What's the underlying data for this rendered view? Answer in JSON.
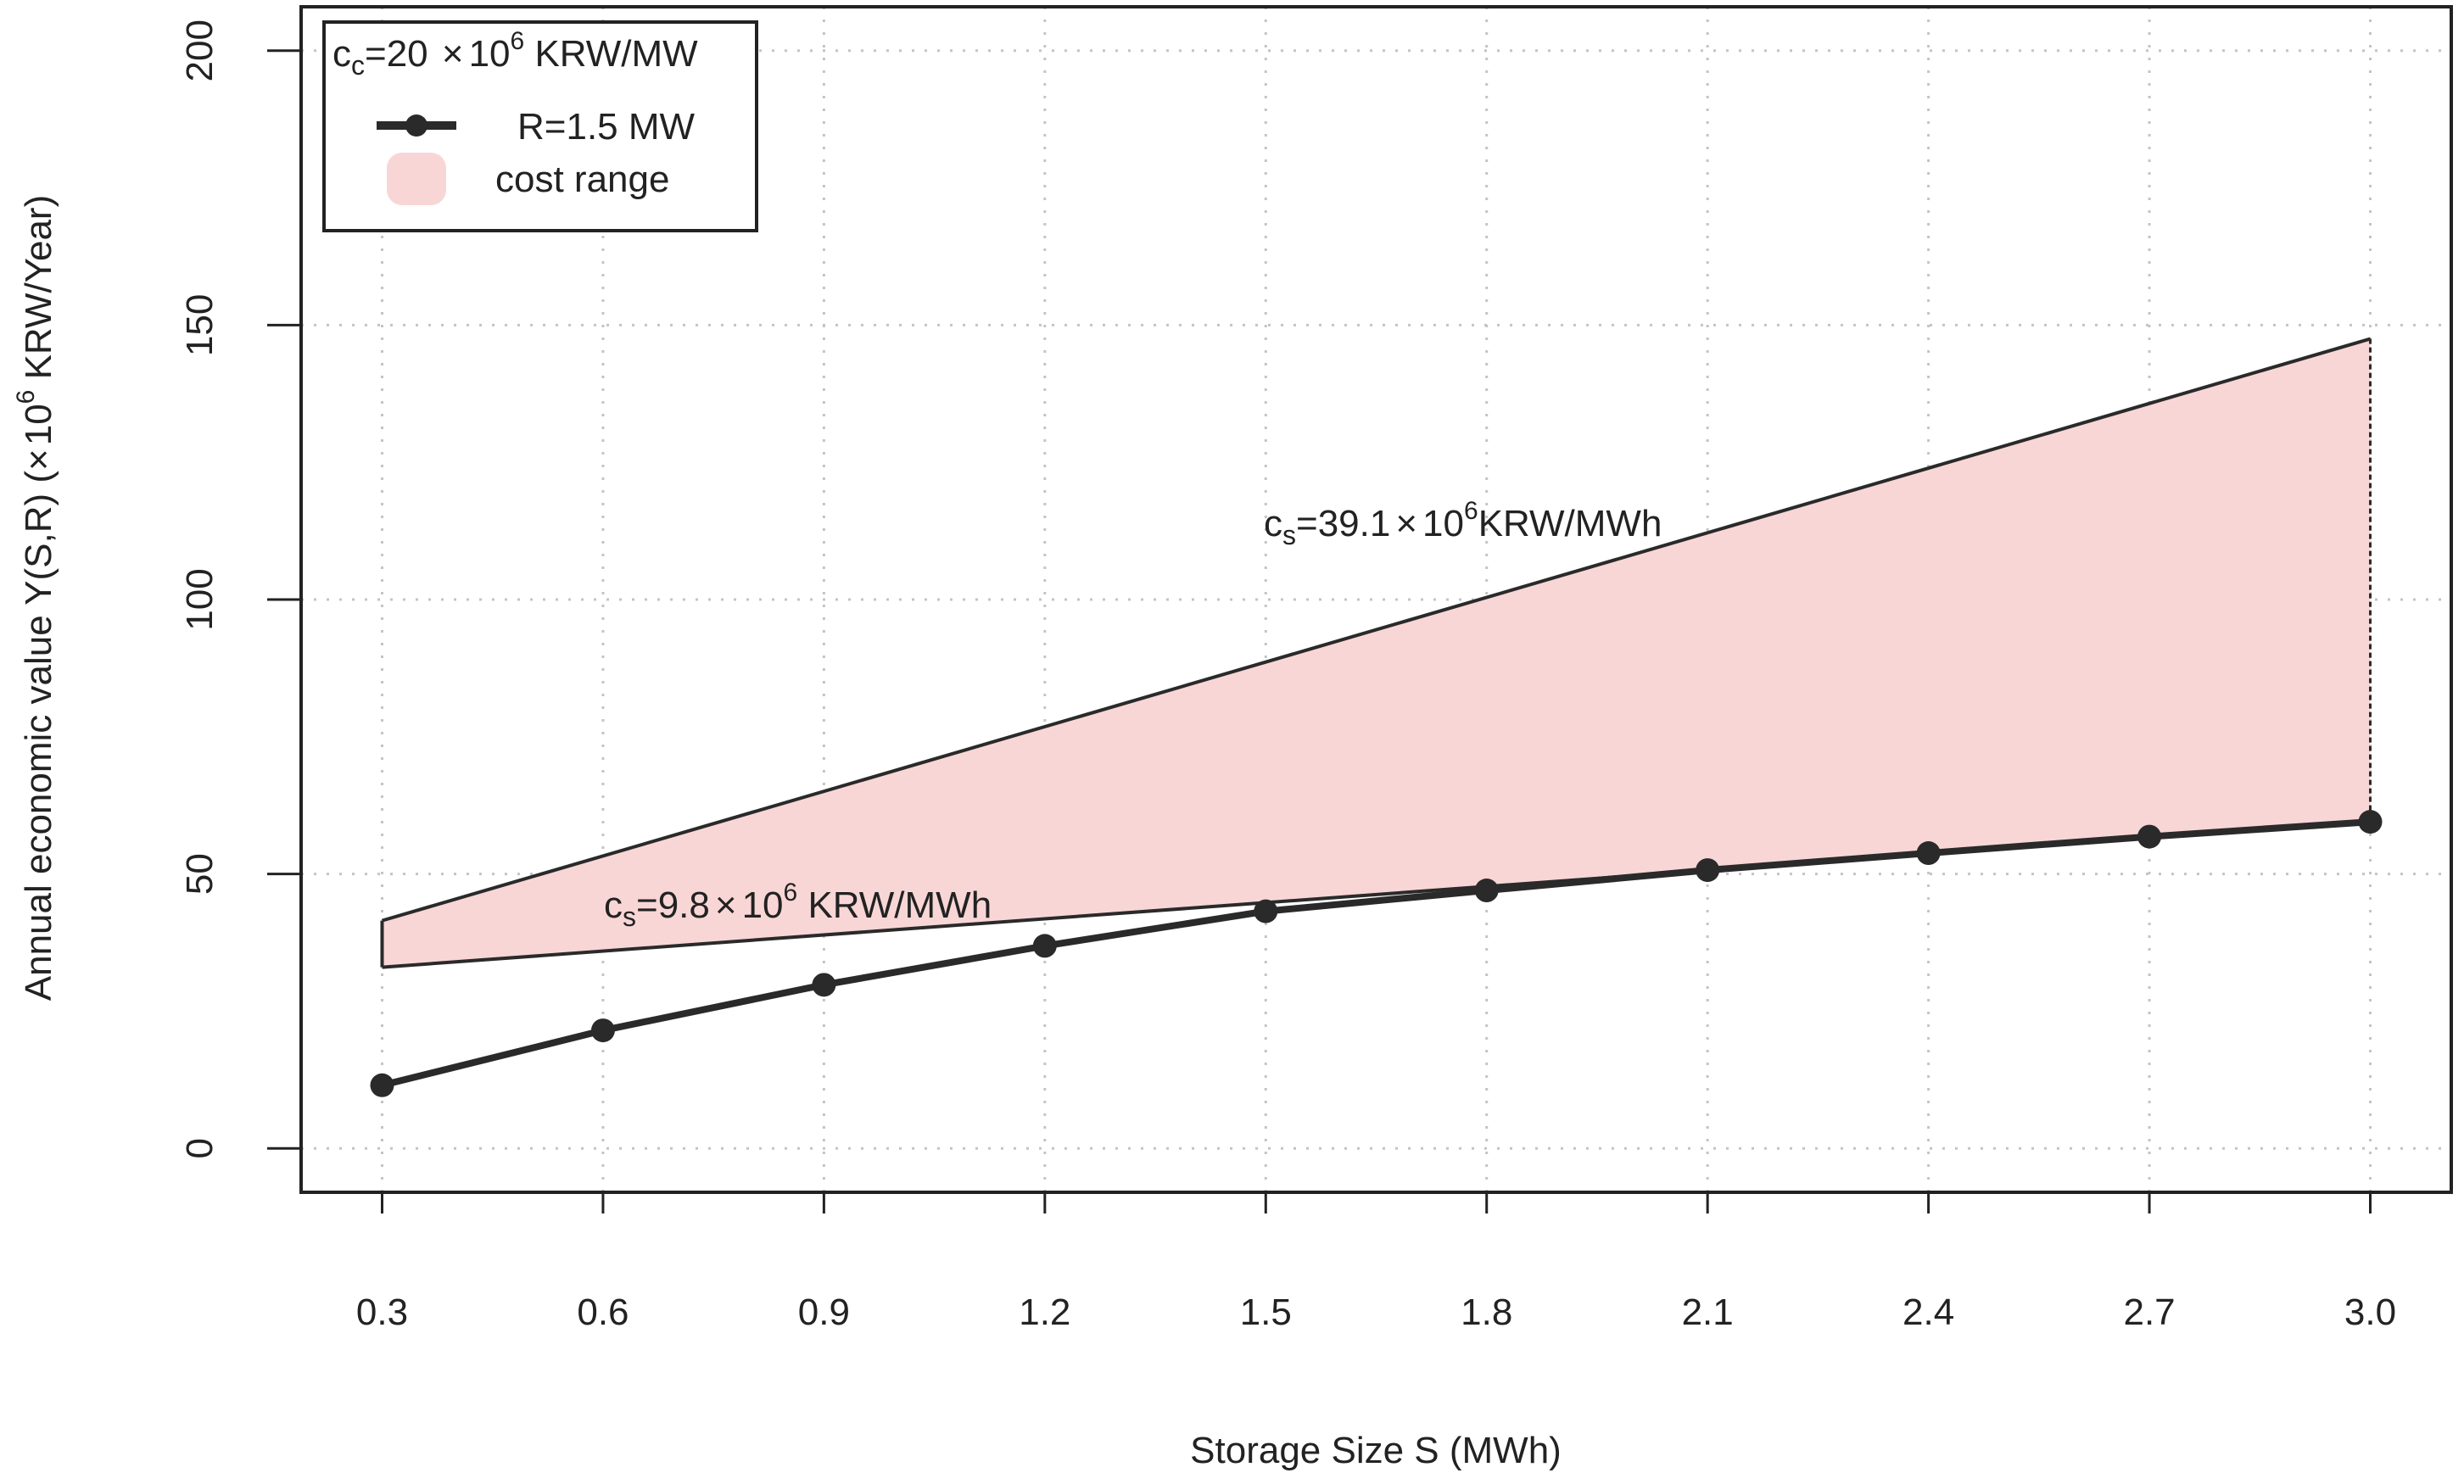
{
  "chart_data": {
    "type": "line",
    "xlabel": "Storage Size S (MWh)",
    "ylabel": {
      "prefix": "Annual economic value Y(S,R) (",
      "times": "×",
      "base": "10",
      "exponent": "6",
      "suffix": " KRW/Year)"
    },
    "x": [
      0.3,
      0.6,
      0.9,
      1.2,
      1.5,
      1.8,
      2.1,
      2.4,
      2.7,
      3.0
    ],
    "x_tick_labels": [
      "0.3",
      "0.6",
      "0.9",
      "1.2",
      "1.5",
      "1.8",
      "2.1",
      "2.4",
      "2.7",
      "3.0"
    ],
    "xlim": [
      0.19,
      3.11
    ],
    "ylim": [
      -8,
      208
    ],
    "y_ticks": [
      0,
      50,
      100,
      150,
      200
    ],
    "y_tick_labels": [
      "0",
      "50",
      "100",
      "150",
      "200"
    ],
    "grid": true,
    "series": [
      {
        "name": "R=1.5 MW",
        "values": [
          11.5,
          21.5,
          29.8,
          36.9,
          43.2,
          47.0,
          50.7,
          53.8,
          56.8,
          59.5
        ],
        "color": "#2a2a2a"
      }
    ],
    "cost_range": {
      "name": "cost range",
      "color": "#f9d6d6",
      "edge_color": "#2a2a2a",
      "x": [
        0.3,
        3.0
      ],
      "upper": [
        41.5,
        147.5
      ],
      "lower": [
        33.0,
        59.5
      ]
    },
    "annotations": {
      "high": {
        "c": "c",
        "sub": "s",
        "eq": "=39.1",
        "times": "×",
        "base": "10",
        "exp": "6",
        "unit": "KRW/MWh"
      },
      "low": {
        "c": "c",
        "sub": "s",
        "eq": "=9.8",
        "times": "×",
        "base": "10",
        "exp": "6",
        "unit": " KRW/MWh"
      }
    },
    "legend": {
      "position": "top-left",
      "title": {
        "c": "c",
        "sub": "c",
        "eq": "=20 ",
        "times": "×",
        "base": "10",
        "exp": "6",
        "unit": " KRW/MW"
      },
      "entries": [
        "R=1.5 MW",
        "cost range"
      ]
    }
  }
}
